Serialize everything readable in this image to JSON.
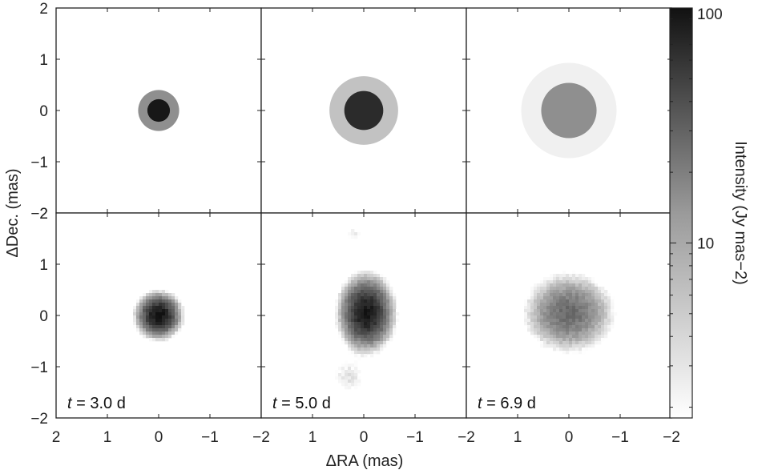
{
  "chart_data": {
    "type": "heatmap",
    "xlabel": "ΔRA (mas)",
    "ylabel": "ΔDec. (mas)",
    "xlim": [
      2,
      -2
    ],
    "ylim": [
      -2,
      2
    ],
    "x_ticks": [
      2,
      1,
      0,
      -1,
      -2
    ],
    "x_tick_labels": [
      "2",
      "1",
      "0",
      "−1",
      "−2"
    ],
    "y_ticks": [
      2,
      1,
      0,
      -1,
      -2
    ],
    "y_tick_labels": [
      "2",
      "1",
      "0",
      "−1",
      "−2"
    ],
    "colorbar": {
      "label": "Intensity (Jy mas−2)",
      "scale": "log",
      "ticks": [
        10,
        100
      ],
      "tick_labels": [
        "10",
        "100"
      ],
      "range": [
        1.8,
        100
      ],
      "colormap": "white-to-black"
    },
    "panels": [
      {
        "row": "model",
        "column": 1,
        "components": [
          {
            "shape": "disk",
            "radius": 0.4,
            "intensity": 12
          },
          {
            "shape": "disk",
            "radius": 0.22,
            "intensity": 90
          }
        ]
      },
      {
        "row": "model",
        "column": 2,
        "components": [
          {
            "shape": "disk",
            "radius": 0.67,
            "intensity": 5
          },
          {
            "shape": "disk",
            "radius": 0.38,
            "intensity": 65
          }
        ]
      },
      {
        "row": "model",
        "column": 3,
        "components": [
          {
            "shape": "disk",
            "radius": 0.93,
            "intensity": 2.3
          },
          {
            "shape": "disk",
            "radius": 0.54,
            "intensity": 12
          }
        ]
      },
      {
        "row": "image",
        "column": 1,
        "time_label": "t = 3.0 d",
        "blobs": [
          {
            "x": 0.0,
            "y": 0.0,
            "sigma_x": 0.18,
            "sigma_y": 0.18,
            "peak": 100
          }
        ]
      },
      {
        "row": "image",
        "column": 2,
        "time_label": "t = 5.0 d",
        "blobs": [
          {
            "x": -0.05,
            "y": 0.05,
            "sigma_x": 0.22,
            "sigma_y": 0.3,
            "peak": 90
          },
          {
            "x": 0.3,
            "y": -1.2,
            "sigma_x": 0.22,
            "sigma_y": 0.25,
            "peak": 3
          },
          {
            "x": 0.2,
            "y": 1.6,
            "sigma_x": 0.12,
            "sigma_y": 0.12,
            "peak": 2.5
          }
        ]
      },
      {
        "row": "image",
        "column": 3,
        "time_label": "t = 6.9 d",
        "blobs": [
          {
            "x": 0.0,
            "y": 0.05,
            "sigma_x": 0.4,
            "sigma_y": 0.35,
            "peak": 22
          }
        ]
      }
    ]
  }
}
